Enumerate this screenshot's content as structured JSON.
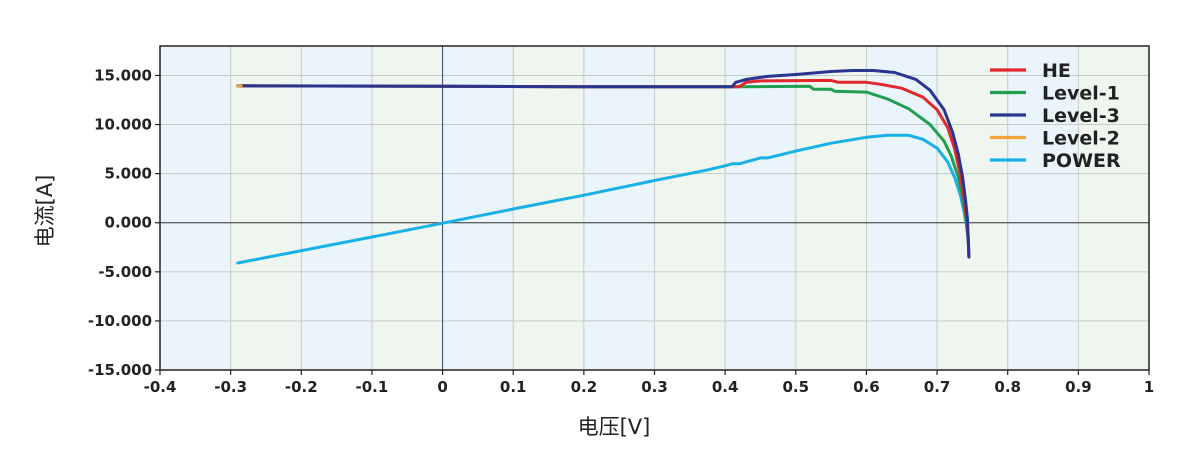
{
  "chart_data": {
    "type": "line",
    "title": "",
    "xlabel": "电压[V]",
    "ylabel": "电流[A]",
    "xlim": [
      -0.4,
      1.0
    ],
    "ylim": [
      -15000,
      18000
    ],
    "grid": true,
    "legend_position": "top-right",
    "x_ticks": [
      "-0.4",
      "-0.3",
      "-0.2",
      "-0.1",
      "0",
      "0.1",
      "0.2",
      "0.3",
      "0.4",
      "0.5",
      "0.6",
      "0.7",
      "0.8",
      "0.9",
      "1"
    ],
    "y_ticks": [
      "15.000",
      "10.000",
      "5.000",
      "0.000",
      "-5.000",
      "-10.000",
      "-15.000"
    ],
    "series": [
      {
        "name": "HE",
        "color": "#e0282e",
        "points": [
          [
            -0.29,
            13950
          ],
          [
            0.0,
            13900
          ],
          [
            0.2,
            13850
          ],
          [
            0.42,
            13850
          ],
          [
            0.43,
            14300
          ],
          [
            0.45,
            14450
          ],
          [
            0.55,
            14500
          ],
          [
            0.56,
            14300
          ],
          [
            0.6,
            14300
          ],
          [
            0.62,
            14100
          ],
          [
            0.65,
            13700
          ],
          [
            0.68,
            12800
          ],
          [
            0.7,
            11500
          ],
          [
            0.715,
            9700
          ],
          [
            0.725,
            7500
          ],
          [
            0.733,
            4800
          ],
          [
            0.738,
            2500
          ],
          [
            0.742,
            300
          ],
          [
            0.744,
            -1500
          ],
          [
            0.745,
            -3400
          ]
        ]
      },
      {
        "name": "Level-1",
        "color": "#1fa050",
        "points": [
          [
            -0.29,
            13950
          ],
          [
            0.0,
            13900
          ],
          [
            0.2,
            13850
          ],
          [
            0.42,
            13850
          ],
          [
            0.52,
            13900
          ],
          [
            0.525,
            13600
          ],
          [
            0.55,
            13600
          ],
          [
            0.555,
            13400
          ],
          [
            0.6,
            13300
          ],
          [
            0.63,
            12600
          ],
          [
            0.66,
            11600
          ],
          [
            0.69,
            10000
          ],
          [
            0.71,
            8300
          ],
          [
            0.72,
            6800
          ],
          [
            0.73,
            4600
          ],
          [
            0.737,
            2300
          ],
          [
            0.741,
            300
          ],
          [
            0.744,
            -1500
          ],
          [
            0.745,
            -3200
          ]
        ]
      },
      {
        "name": "Level-3",
        "color": "#2a3590",
        "points": [
          [
            -0.29,
            13950
          ],
          [
            0.0,
            13900
          ],
          [
            0.2,
            13850
          ],
          [
            0.41,
            13850
          ],
          [
            0.415,
            14300
          ],
          [
            0.43,
            14600
          ],
          [
            0.46,
            14900
          ],
          [
            0.5,
            15100
          ],
          [
            0.55,
            15400
          ],
          [
            0.58,
            15500
          ],
          [
            0.61,
            15500
          ],
          [
            0.64,
            15300
          ],
          [
            0.67,
            14600
          ],
          [
            0.69,
            13500
          ],
          [
            0.71,
            11500
          ],
          [
            0.722,
            9200
          ],
          [
            0.73,
            7000
          ],
          [
            0.736,
            4700
          ],
          [
            0.74,
            2500
          ],
          [
            0.743,
            500
          ],
          [
            0.745,
            -3500
          ]
        ]
      },
      {
        "name": "Level-2",
        "color": "#f5a23a",
        "points": [
          [
            -0.29,
            13950
          ],
          [
            -0.285,
            13950
          ]
        ]
      },
      {
        "name": "POWER",
        "color": "#19b0e6",
        "points": [
          [
            -0.29,
            -4100
          ],
          [
            -0.1,
            -1450
          ],
          [
            0.0,
            -50
          ],
          [
            0.1,
            1400
          ],
          [
            0.2,
            2800
          ],
          [
            0.3,
            4300
          ],
          [
            0.37,
            5300
          ],
          [
            0.4,
            5800
          ],
          [
            0.41,
            6000
          ],
          [
            0.42,
            6000
          ],
          [
            0.45,
            6600
          ],
          [
            0.46,
            6600
          ],
          [
            0.5,
            7300
          ],
          [
            0.55,
            8100
          ],
          [
            0.6,
            8700
          ],
          [
            0.63,
            8900
          ],
          [
            0.66,
            8900
          ],
          [
            0.68,
            8500
          ],
          [
            0.7,
            7600
          ],
          [
            0.715,
            6200
          ],
          [
            0.725,
            4600
          ],
          [
            0.733,
            2800
          ],
          [
            0.738,
            1200
          ],
          [
            0.742,
            -400
          ],
          [
            0.744,
            -1800
          ]
        ]
      }
    ]
  }
}
